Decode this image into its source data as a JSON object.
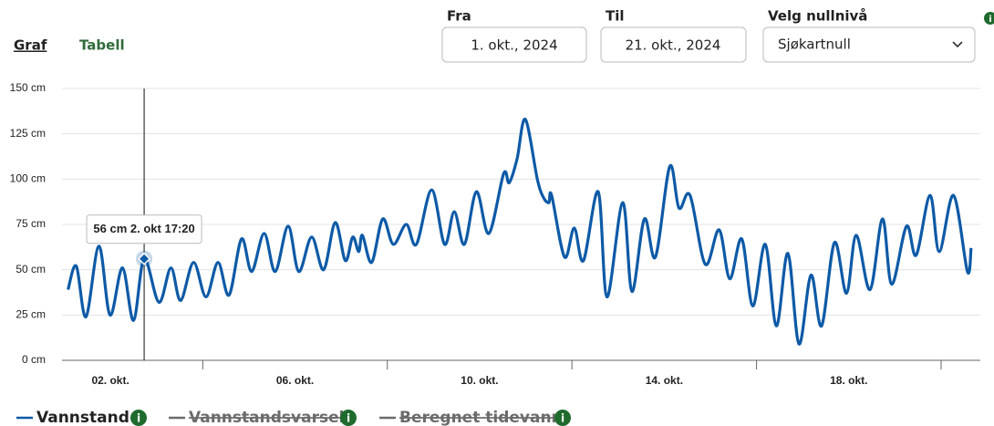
{
  "ui": {
    "tabs": [
      "Graf",
      "Tabell"
    ],
    "from_label": "Fra",
    "from_value": "1. okt., 2024",
    "to_label": "Til",
    "to_value": "21. okt., 2024",
    "level_label": "Velg nullnivå",
    "level_value": "Sjøkartnull",
    "info_icon": "i"
  },
  "chart_data": {
    "type": "line",
    "x": [
      1.08,
      1.26,
      1.47,
      1.75,
      1.99,
      2.26,
      2.5,
      2.73,
      3.05,
      3.31,
      3.52,
      3.8,
      4.07,
      4.33,
      4.57,
      4.84,
      5.06,
      5.33,
      5.57,
      5.85,
      6.08,
      6.36,
      6.62,
      6.87,
      7.09,
      7.25,
      7.38,
      7.46,
      7.66,
      7.9,
      8.13,
      8.41,
      8.63,
      8.96,
      9.24,
      9.45,
      9.67,
      9.93,
      10.2,
      10.52,
      10.64,
      10.81,
      10.99,
      11.25,
      11.38,
      11.5,
      11.56,
      11.84,
      12.05,
      12.25,
      12.57,
      12.76,
      13.1,
      13.3,
      13.57,
      13.81,
      14.12,
      14.32,
      14.56,
      14.89,
      15.19,
      15.42,
      15.68,
      15.92,
      16.19,
      16.43,
      16.68,
      16.92,
      17.18,
      17.41,
      17.69,
      17.95,
      18.16,
      18.46,
      18.73,
      18.93,
      19.25,
      19.46,
      19.76,
      19.96,
      20.27,
      20.57,
      20.65
    ],
    "series": [
      {
        "name": "Vannstand",
        "color": "#0d5aa7",
        "values": [
          39,
          52,
          24,
          63,
          25,
          51,
          22,
          56,
          32,
          51,
          33,
          54,
          35,
          54,
          36,
          67,
          49,
          70,
          49,
          74,
          49,
          68,
          50,
          76,
          55,
          68,
          60,
          69,
          54,
          78,
          64,
          75,
          64,
          94,
          64,
          82,
          64,
          93,
          70,
          103,
          98,
          111,
          133,
          100,
          90,
          87,
          91,
          57,
          73,
          55,
          93,
          35,
          87,
          38,
          78,
          57,
          107,
          84,
          91,
          53,
          72,
          45,
          67,
          30,
          64,
          19,
          59,
          9,
          47,
          19,
          65,
          37,
          69,
          39,
          78,
          42,
          74,
          58,
          91,
          60,
          91,
          49,
          62
        ]
      }
    ],
    "hidden_series": [
      {
        "name": "Vannstandsvarsel",
        "color": "#6b6b6b"
      },
      {
        "name": "Beregnet tidevann",
        "color": "#6b6b6b"
      }
    ],
    "xlim": [
      0.95,
      20.85
    ],
    "xticks": [
      {
        "value": 2,
        "label": "02. okt."
      },
      {
        "value": 6,
        "label": "06. okt."
      },
      {
        "value": 10,
        "label": "10. okt."
      },
      {
        "value": 14,
        "label": "14. okt."
      },
      {
        "value": 18,
        "label": "18. okt."
      }
    ],
    "xminorticks": [
      4,
      8,
      12,
      16,
      20
    ],
    "ylim": [
      0,
      150
    ],
    "yticks": [
      {
        "value": 0,
        "label": "0 cm"
      },
      {
        "value": 25,
        "label": "25 cm"
      },
      {
        "value": 50,
        "label": "50 cm"
      },
      {
        "value": 75,
        "label": "75 cm"
      },
      {
        "value": 100,
        "label": "100 cm"
      },
      {
        "value": 125,
        "label": "125 cm"
      },
      {
        "value": 150,
        "label": "150 cm"
      }
    ],
    "grid": true,
    "tooltip": {
      "text": "56 cm 2. okt 17:20",
      "x": 2.73,
      "value": 56
    }
  }
}
